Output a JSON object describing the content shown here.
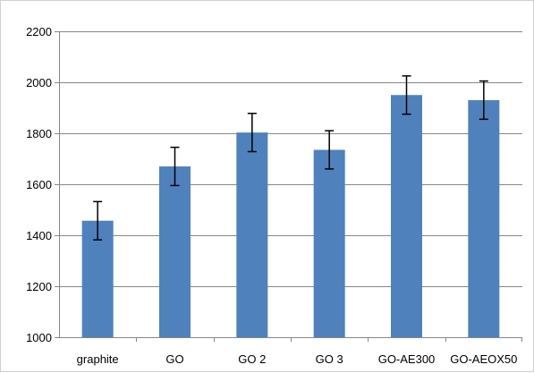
{
  "chart_data": {
    "type": "bar",
    "title": "",
    "xlabel": "",
    "ylabel": "",
    "categories": [
      "graphite",
      "GO",
      "GO 2",
      "GO 3",
      "GO-AE300",
      "GO-AEOX50"
    ],
    "values": [
      1457,
      1670,
      1803,
      1735,
      1950,
      1930
    ],
    "error": [
      75,
      75,
      75,
      75,
      75,
      75
    ],
    "ylim": [
      1000,
      2200
    ],
    "yticks": [
      1000,
      1200,
      1400,
      1600,
      1800,
      2000,
      2200
    ],
    "grid": true,
    "legend": "none",
    "colors": {
      "bar": "#4f81bd",
      "grid": "#878787",
      "axis": "#878787",
      "error_bar": "#000000"
    }
  }
}
